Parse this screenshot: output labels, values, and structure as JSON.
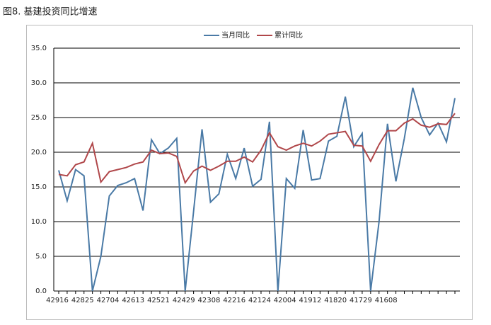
{
  "chart_data": {
    "type": "line",
    "title": "图8. 基建投资同比增速",
    "categories": [
      "42916",
      null,
      null,
      "42825",
      null,
      null,
      "42704",
      null,
      null,
      "42613",
      null,
      null,
      "42521",
      null,
      null,
      "42429",
      null,
      null,
      "42308",
      null,
      null,
      "42216",
      null,
      null,
      "42124",
      null,
      null,
      "42004",
      null,
      null,
      "41912",
      null,
      null,
      "41820",
      null,
      null,
      "41729",
      null,
      null,
      "41608",
      null,
      null,
      null,
      null,
      null,
      null,
      null,
      null
    ],
    "series": [
      {
        "name": "当月同比",
        "color": "#4a7aa6",
        "values": [
          17.4,
          13.0,
          17.5,
          16.6,
          0,
          5.0,
          13.7,
          15.2,
          15.6,
          16.2,
          11.6,
          21.8,
          19.8,
          20.6,
          22.0,
          0,
          11.5,
          23.3,
          12.8,
          14.0,
          19.7,
          16.2,
          20.6,
          15.1,
          16.1,
          24.4,
          0,
          16.2,
          14.8,
          23.2,
          16.0,
          16.2,
          21.6,
          22.3,
          28.0,
          20.8,
          22.7,
          0,
          10.0,
          24.1,
          15.8,
          22.0,
          29.3,
          25.0,
          22.5,
          24.2,
          21.5,
          27.8
        ]
      },
      {
        "name": "累计同比",
        "color": "#b0474a",
        "values": [
          16.8,
          16.6,
          18.2,
          18.6,
          21.3,
          15.7,
          17.2,
          17.5,
          17.8,
          18.3,
          18.6,
          20.3,
          19.8,
          19.9,
          19.4,
          15.6,
          17.3,
          18.0,
          17.4,
          18.0,
          18.7,
          18.7,
          19.3,
          18.6,
          20.3,
          22.8,
          20.8,
          20.3,
          20.9,
          21.3,
          20.9,
          21.6,
          22.6,
          22.8,
          23.0,
          21.0,
          20.9,
          18.7,
          21.1,
          23.1,
          23.1,
          24.2,
          24.8,
          23.9,
          23.6,
          24.1,
          24.0,
          25.6
        ]
      }
    ],
    "ylim": [
      0,
      35
    ],
    "yticks": [
      {
        "value": 0,
        "label": "0.0"
      },
      {
        "value": 5,
        "label": "5.0"
      },
      {
        "value": 10,
        "label": "10.0"
      },
      {
        "value": 15,
        "label": "15.0"
      },
      {
        "value": 20,
        "label": "20.0"
      },
      {
        "value": 25,
        "label": "25.0"
      },
      {
        "value": 30,
        "label": "30.0"
      },
      {
        "value": 35,
        "label": "35.0"
      }
    ],
    "grid": true,
    "legend": "top"
  }
}
